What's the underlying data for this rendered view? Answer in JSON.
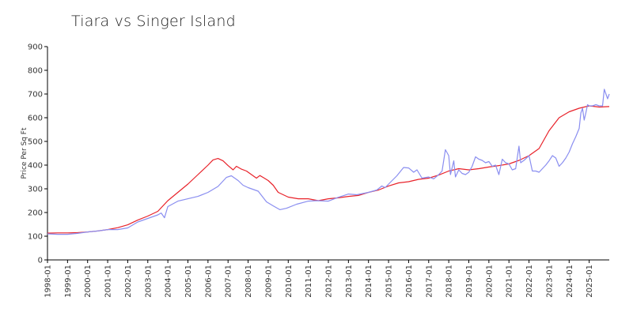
{
  "chart_data": {
    "type": "line",
    "title": "Tiara vs Singer Island",
    "xlabel": "",
    "ylabel": "Price Per Sq Ft",
    "ylim": [
      0,
      900
    ],
    "yticks": [
      0,
      100,
      200,
      300,
      400,
      500,
      600,
      700,
      800,
      900
    ],
    "x_range": [
      "1998-01",
      "2026-01"
    ],
    "xticks": [
      "1998-01",
      "1999-01",
      "2000-01",
      "2001-01",
      "2002-01",
      "2003-01",
      "2004-01",
      "2005-01",
      "2006-01",
      "2007-01",
      "2008-01",
      "2009-01",
      "2010-01",
      "2011-01",
      "2012-01",
      "2013-01",
      "2014-01",
      "2015-01",
      "2016-01",
      "2017-01",
      "2018-01",
      "2019-01",
      "2020-01",
      "2021-01",
      "2022-01",
      "2023-01",
      "2024-01",
      "2025-01"
    ],
    "grid": false,
    "legend": "none",
    "series": [
      {
        "color": "#e8222a",
        "points": [
          [
            "1998-01",
            113
          ],
          [
            "1998-07",
            114
          ],
          [
            "1999-01",
            114
          ],
          [
            "1999-07",
            115
          ],
          [
            "2000-01",
            118
          ],
          [
            "2000-07",
            122
          ],
          [
            "2001-01",
            128
          ],
          [
            "2001-07",
            136
          ],
          [
            "2002-01",
            148
          ],
          [
            "2002-07",
            168
          ],
          [
            "2003-01",
            185
          ],
          [
            "2003-07",
            205
          ],
          [
            "2004-01",
            250
          ],
          [
            "2004-07",
            285
          ],
          [
            "2005-01",
            320
          ],
          [
            "2005-07",
            360
          ],
          [
            "2006-01",
            400
          ],
          [
            "2006-04",
            422
          ],
          [
            "2006-07",
            428
          ],
          [
            "2006-10",
            418
          ],
          [
            "2007-01",
            398
          ],
          [
            "2007-04",
            380
          ],
          [
            "2007-06",
            395
          ],
          [
            "2007-09",
            383
          ],
          [
            "2007-12",
            375
          ],
          [
            "2008-03",
            360
          ],
          [
            "2008-06",
            345
          ],
          [
            "2008-08",
            356
          ],
          [
            "2008-10",
            348
          ],
          [
            "2009-01",
            335
          ],
          [
            "2009-04",
            315
          ],
          [
            "2009-07",
            285
          ],
          [
            "2010-01",
            265
          ],
          [
            "2010-07",
            258
          ],
          [
            "2011-01",
            258
          ],
          [
            "2011-07",
            250
          ],
          [
            "2012-01",
            258
          ],
          [
            "2012-07",
            262
          ],
          [
            "2013-01",
            268
          ],
          [
            "2013-07",
            272
          ],
          [
            "2014-01",
            285
          ],
          [
            "2014-07",
            295
          ],
          [
            "2015-01",
            312
          ],
          [
            "2015-07",
            325
          ],
          [
            "2016-01",
            330
          ],
          [
            "2016-07",
            340
          ],
          [
            "2017-01",
            345
          ],
          [
            "2017-07",
            358
          ],
          [
            "2018-01",
            375
          ],
          [
            "2018-07",
            385
          ],
          [
            "2019-01",
            380
          ],
          [
            "2019-07",
            385
          ],
          [
            "2020-01",
            392
          ],
          [
            "2020-07",
            398
          ],
          [
            "2021-01",
            405
          ],
          [
            "2021-07",
            420
          ],
          [
            "2022-01",
            440
          ],
          [
            "2022-07",
            470
          ],
          [
            "2023-01",
            545
          ],
          [
            "2023-07",
            600
          ],
          [
            "2024-01",
            625
          ],
          [
            "2024-07",
            640
          ],
          [
            "2025-01",
            650
          ],
          [
            "2025-07",
            645
          ],
          [
            "2026-01",
            647
          ]
        ]
      },
      {
        "color": "#8a8ef0",
        "points": [
          [
            "1998-01",
            110
          ],
          [
            "1998-07",
            108
          ],
          [
            "1999-01",
            108
          ],
          [
            "1999-07",
            112
          ],
          [
            "2000-01",
            118
          ],
          [
            "2000-07",
            122
          ],
          [
            "2001-01",
            128
          ],
          [
            "2001-07",
            128
          ],
          [
            "2002-01",
            135
          ],
          [
            "2002-07",
            160
          ],
          [
            "2003-01",
            175
          ],
          [
            "2003-07",
            190
          ],
          [
            "2003-09",
            198
          ],
          [
            "2003-11",
            178
          ],
          [
            "2004-01",
            225
          ],
          [
            "2004-07",
            248
          ],
          [
            "2005-01",
            258
          ],
          [
            "2005-07",
            268
          ],
          [
            "2006-01",
            285
          ],
          [
            "2006-07",
            310
          ],
          [
            "2006-12",
            348
          ],
          [
            "2007-03",
            355
          ],
          [
            "2007-07",
            335
          ],
          [
            "2007-10",
            315
          ],
          [
            "2008-01",
            305
          ],
          [
            "2008-07",
            290
          ],
          [
            "2008-12",
            245
          ],
          [
            "2009-04",
            228
          ],
          [
            "2009-08",
            212
          ],
          [
            "2009-12",
            218
          ],
          [
            "2010-06",
            235
          ],
          [
            "2011-01",
            248
          ],
          [
            "2011-06",
            250
          ],
          [
            "2012-01",
            248
          ],
          [
            "2012-06",
            262
          ],
          [
            "2013-01",
            278
          ],
          [
            "2013-06",
            275
          ],
          [
            "2014-01",
            285
          ],
          [
            "2014-06",
            295
          ],
          [
            "2014-09",
            312
          ],
          [
            "2014-11",
            305
          ],
          [
            "2015-01",
            320
          ],
          [
            "2015-06",
            355
          ],
          [
            "2015-10",
            390
          ],
          [
            "2016-01",
            388
          ],
          [
            "2016-04",
            370
          ],
          [
            "2016-06",
            380
          ],
          [
            "2016-09",
            345
          ],
          [
            "2017-01",
            350
          ],
          [
            "2017-04",
            342
          ],
          [
            "2017-07",
            360
          ],
          [
            "2017-09",
            375
          ],
          [
            "2017-11",
            465
          ],
          [
            "2018-01",
            440
          ],
          [
            "2018-02",
            360
          ],
          [
            "2018-04",
            418
          ],
          [
            "2018-05",
            350
          ],
          [
            "2018-07",
            380
          ],
          [
            "2018-09",
            365
          ],
          [
            "2018-11",
            360
          ],
          [
            "2019-01",
            370
          ],
          [
            "2019-03",
            395
          ],
          [
            "2019-05",
            435
          ],
          [
            "2019-07",
            425
          ],
          [
            "2019-09",
            420
          ],
          [
            "2019-11",
            410
          ],
          [
            "2020-01",
            415
          ],
          [
            "2020-03",
            395
          ],
          [
            "2020-05",
            400
          ],
          [
            "2020-07",
            360
          ],
          [
            "2020-09",
            425
          ],
          [
            "2020-11",
            410
          ],
          [
            "2021-01",
            405
          ],
          [
            "2021-03",
            380
          ],
          [
            "2021-05",
            385
          ],
          [
            "2021-07",
            480
          ],
          [
            "2021-08",
            410
          ],
          [
            "2021-10",
            420
          ],
          [
            "2022-01",
            440
          ],
          [
            "2022-03",
            375
          ],
          [
            "2022-05",
            375
          ],
          [
            "2022-07",
            370
          ],
          [
            "2022-09",
            385
          ],
          [
            "2022-11",
            400
          ],
          [
            "2023-01",
            418
          ],
          [
            "2023-03",
            440
          ],
          [
            "2023-05",
            430
          ],
          [
            "2023-07",
            395
          ],
          [
            "2023-09",
            410
          ],
          [
            "2023-11",
            430
          ],
          [
            "2024-01",
            455
          ],
          [
            "2024-03",
            490
          ],
          [
            "2024-05",
            520
          ],
          [
            "2024-07",
            555
          ],
          [
            "2024-08",
            620
          ],
          [
            "2024-09",
            640
          ],
          [
            "2024-10",
            590
          ],
          [
            "2024-11",
            620
          ],
          [
            "2024-12",
            655
          ],
          [
            "2025-01",
            650
          ],
          [
            "2025-03",
            650
          ],
          [
            "2025-05",
            655
          ],
          [
            "2025-07",
            650
          ],
          [
            "2025-09",
            650
          ],
          [
            "2025-10",
            720
          ],
          [
            "2025-11",
            700
          ],
          [
            "2025-12",
            680
          ],
          [
            "2026-01",
            700
          ]
        ]
      }
    ]
  }
}
